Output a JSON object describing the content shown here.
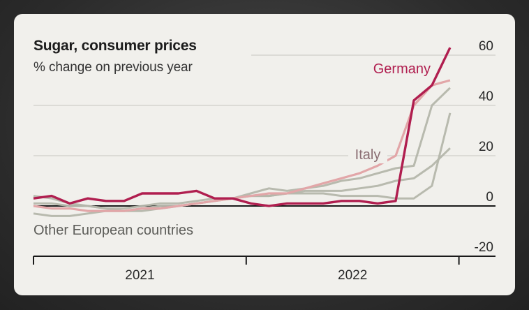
{
  "chart_data": {
    "type": "line",
    "title": "Sugar, consumer prices",
    "subtitle": "% change on previous year",
    "xlabel": "",
    "ylabel": "% change on previous year",
    "ylim": [
      -20,
      60
    ],
    "yticks": [
      60,
      40,
      20,
      0,
      -20
    ],
    "ytick_labels": [
      "60",
      "40",
      "20",
      "0",
      "-20"
    ],
    "x_period_labels": [
      "2021",
      "2022"
    ],
    "x_start": "Jan 2021",
    "x_end": "Dec 2022",
    "grid": "horizontal",
    "x": [
      "Jan 21",
      "Feb 21",
      "Mar 21",
      "Apr 21",
      "May 21",
      "Jun 21",
      "Jul 21",
      "Aug 21",
      "Sep 21",
      "Oct 21",
      "Nov 21",
      "Dec 21",
      "Jan 22",
      "Feb 22",
      "Mar 22",
      "Apr 22",
      "May 22",
      "Jun 22",
      "Jul 22",
      "Aug 22",
      "Sep 22",
      "Oct 22",
      "Nov 22",
      "Dec 22"
    ],
    "series": [
      {
        "name": "Other European countries",
        "role": "other",
        "color": "#b4b6ab",
        "values": [
          -3,
          -4,
          -4,
          -3,
          -2,
          -2,
          -1,
          0,
          0,
          1,
          2,
          3,
          4,
          4,
          5,
          6,
          6,
          6,
          7,
          8,
          10,
          11,
          16,
          23
        ]
      },
      {
        "name": "Other European countries",
        "role": "other",
        "color": "#b4b6ab",
        "values": [
          4,
          3,
          1,
          0,
          -1,
          -2,
          -2,
          -1,
          0,
          1,
          2,
          3,
          5,
          7,
          6,
          7,
          8,
          10,
          11,
          13,
          15,
          16,
          40,
          47
        ]
      },
      {
        "name": "Other European countries",
        "role": "other",
        "color": "#b4b6ab",
        "values": [
          1,
          1,
          0,
          0,
          -1,
          -1,
          0,
          1,
          1,
          2,
          3,
          3,
          4,
          4,
          5,
          5,
          5,
          4,
          4,
          4,
          3,
          3,
          8,
          37
        ]
      },
      {
        "name": "Italy",
        "role": "highlight",
        "color": "#e2a6a8",
        "values": [
          0,
          -1,
          -1,
          -2,
          -2,
          -2,
          -1,
          -1,
          0,
          1,
          2,
          3,
          4,
          5,
          5,
          7,
          9,
          11,
          13,
          16,
          20,
          40,
          48,
          50
        ]
      },
      {
        "name": "Germany",
        "role": "highlight",
        "color": "#b01e4f",
        "values": [
          3,
          4,
          1,
          3,
          2,
          2,
          5,
          5,
          5,
          6,
          3,
          3,
          1,
          0,
          1,
          1,
          1,
          2,
          2,
          1,
          2,
          42,
          48,
          63
        ]
      }
    ],
    "annotations": [
      {
        "text": "Germany",
        "series": "Germany"
      },
      {
        "text": "Italy",
        "series": "Italy"
      },
      {
        "text": "Other European countries",
        "series": "Other European countries"
      }
    ]
  }
}
